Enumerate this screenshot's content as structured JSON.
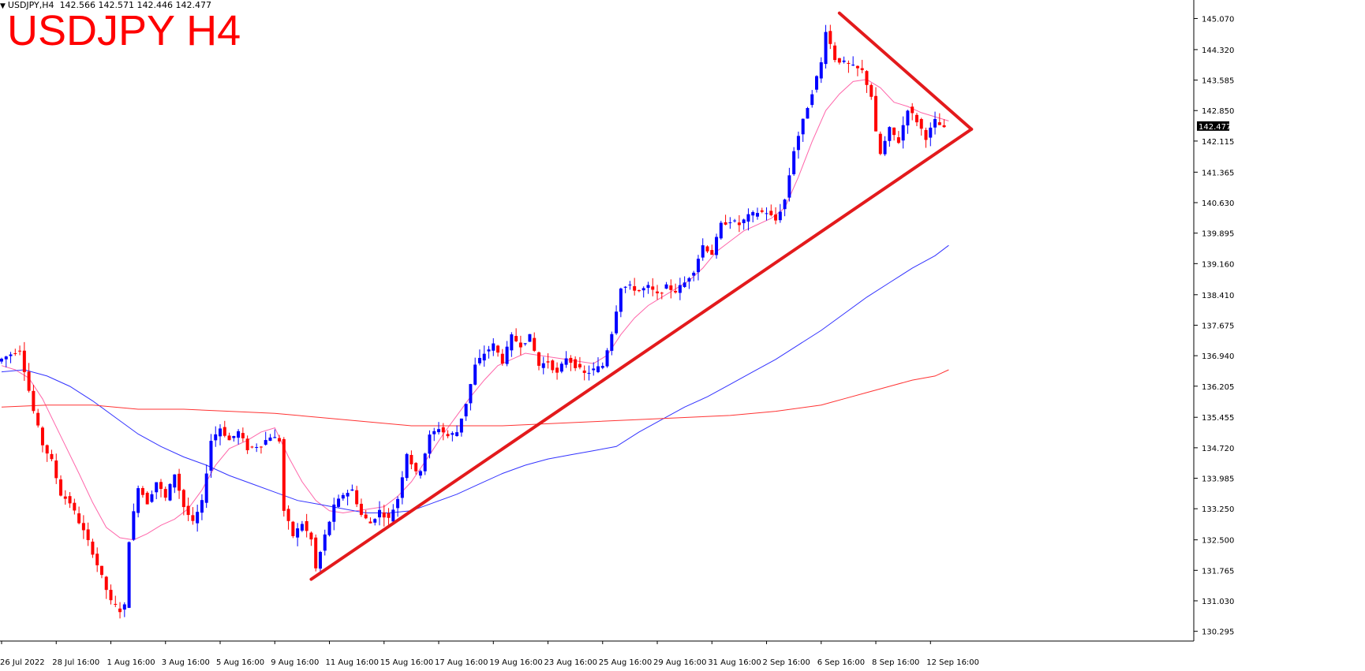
{
  "header": {
    "symbol_line": "USDJPY,H4",
    "ohlc": "142.566 142.571 142.446 142.477",
    "title": "USDJPY H4"
  },
  "colors": {
    "bull": "#0000ff",
    "bear": "#ff0000",
    "trendline": "#e31a1c",
    "ma_fast": "#ff66aa",
    "ma_mid": "#3333ff",
    "ma_slow": "#ff3333",
    "axis": "#000000",
    "price_tag_bg": "#000000"
  },
  "chart_data": {
    "type": "candlestick",
    "symbol": "USDJPY",
    "timeframe": "H4",
    "current_price": "142.477",
    "y_ticks": [
      "145.070",
      "144.320",
      "143.585",
      "142.850",
      "142.115",
      "141.365",
      "140.630",
      "139.895",
      "139.160",
      "138.410",
      "137.675",
      "136.940",
      "136.205",
      "135.455",
      "134.720",
      "133.985",
      "133.250",
      "132.500",
      "131.765",
      "131.030",
      "130.295"
    ],
    "ylim": [
      130.06,
      145.44
    ],
    "x_count": 225,
    "x_ticks": [
      {
        "i": 0,
        "label": "26 Jul 2022"
      },
      {
        "i": 12,
        "label": "28 Jul 16:00"
      },
      {
        "i": 24,
        "label": "1 Aug 16:00"
      },
      {
        "i": 36,
        "label": "3 Aug 16:00"
      },
      {
        "i": 48,
        "label": "5 Aug 16:00"
      },
      {
        "i": 60,
        "label": "9 Aug 16:00"
      },
      {
        "i": 72,
        "label": "11 Aug 16:00"
      },
      {
        "i": 84,
        "label": "15 Aug 16:00"
      },
      {
        "i": 96,
        "label": "17 Aug 16:00"
      },
      {
        "i": 108,
        "label": "19 Aug 16:00"
      },
      {
        "i": 120,
        "label": "23 Aug 16:00"
      },
      {
        "i": 132,
        "label": "25 Aug 16:00"
      },
      {
        "i": 144,
        "label": "29 Aug 16:00"
      },
      {
        "i": 156,
        "label": "31 Aug 16:00"
      },
      {
        "i": 168,
        "label": "2 Sep 16:00"
      },
      {
        "i": 180,
        "label": "6 Sep 16:00"
      },
      {
        "i": 192,
        "label": "8 Sep 16:00"
      },
      {
        "i": 204,
        "label": "12 Sep 16:00"
      }
    ],
    "price_path": [
      [
        0,
        136.8
      ],
      [
        5,
        137.1
      ],
      [
        6,
        136.6
      ],
      [
        8,
        135.6
      ],
      [
        10,
        134.8
      ],
      [
        12,
        134.4
      ],
      [
        14,
        133.6
      ],
      [
        16,
        133.4
      ],
      [
        19,
        132.7
      ],
      [
        21,
        132.2
      ],
      [
        23,
        131.6
      ],
      [
        25,
        131.0
      ],
      [
        27,
        130.8
      ],
      [
        28,
        130.9
      ],
      [
        29,
        132.5
      ],
      [
        31,
        133.8
      ],
      [
        33,
        133.4
      ],
      [
        35,
        133.9
      ],
      [
        37,
        133.5
      ],
      [
        39,
        134.1
      ],
      [
        41,
        133.3
      ],
      [
        43,
        132.9
      ],
      [
        45,
        133.4
      ],
      [
        47,
        134.9
      ],
      [
        49,
        135.2
      ],
      [
        51,
        134.9
      ],
      [
        53,
        135.1
      ],
      [
        55,
        134.7
      ],
      [
        58,
        134.8
      ],
      [
        60,
        135.0
      ],
      [
        62,
        134.9
      ],
      [
        63,
        133.2
      ],
      [
        65,
        132.6
      ],
      [
        67,
        132.9
      ],
      [
        69,
        132.5
      ],
      [
        70,
        131.8
      ],
      [
        72,
        132.6
      ],
      [
        74,
        133.3
      ],
      [
        76,
        133.6
      ],
      [
        78,
        133.7
      ],
      [
        80,
        133.1
      ],
      [
        82,
        132.9
      ],
      [
        84,
        133.2
      ],
      [
        86,
        133.0
      ],
      [
        88,
        133.5
      ],
      [
        90,
        134.6
      ],
      [
        92,
        134.1
      ],
      [
        93,
        134.2
      ],
      [
        95,
        135.0
      ],
      [
        97,
        135.2
      ],
      [
        99,
        135.0
      ],
      [
        101,
        135.1
      ],
      [
        103,
        135.8
      ],
      [
        105,
        136.7
      ],
      [
        107,
        137.0
      ],
      [
        109,
        137.2
      ],
      [
        111,
        136.8
      ],
      [
        113,
        137.4
      ],
      [
        115,
        137.2
      ],
      [
        117,
        137.4
      ],
      [
        119,
        136.7
      ],
      [
        121,
        136.8
      ],
      [
        123,
        136.5
      ],
      [
        125,
        136.9
      ],
      [
        127,
        136.7
      ],
      [
        129,
        136.5
      ],
      [
        131,
        136.6
      ],
      [
        133,
        136.7
      ],
      [
        135,
        137.5
      ],
      [
        137,
        138.6
      ],
      [
        139,
        138.6
      ],
      [
        141,
        138.5
      ],
      [
        143,
        138.6
      ],
      [
        145,
        138.4
      ],
      [
        147,
        138.6
      ],
      [
        149,
        138.5
      ],
      [
        151,
        138.7
      ],
      [
        153,
        139.0
      ],
      [
        155,
        139.6
      ],
      [
        157,
        139.4
      ],
      [
        159,
        140.1
      ],
      [
        161,
        140.2
      ],
      [
        163,
        140.1
      ],
      [
        165,
        140.3
      ],
      [
        167,
        140.4
      ],
      [
        169,
        140.4
      ],
      [
        171,
        140.2
      ],
      [
        173,
        140.7
      ],
      [
        175,
        141.9
      ],
      [
        177,
        142.6
      ],
      [
        179,
        143.3
      ],
      [
        181,
        144.0
      ],
      [
        182,
        144.8
      ],
      [
        184,
        144.1
      ],
      [
        186,
        144.0
      ],
      [
        188,
        143.9
      ],
      [
        190,
        143.8
      ],
      [
        192,
        143.2
      ],
      [
        193,
        142.3
      ],
      [
        194,
        141.8
      ],
      [
        196,
        142.4
      ],
      [
        198,
        142.1
      ],
      [
        200,
        142.9
      ],
      [
        202,
        142.6
      ],
      [
        204,
        142.2
      ],
      [
        206,
        142.6
      ],
      [
        208,
        142.4
      ]
    ],
    "series": [
      {
        "name": "",
        "color": "#ff66aa",
        "points": [
          [
            0,
            136.7
          ],
          [
            3,
            136.6
          ],
          [
            6,
            136.4
          ],
          [
            9,
            135.9
          ],
          [
            13,
            135.0
          ],
          [
            17,
            134.1
          ],
          [
            20,
            133.4
          ],
          [
            23,
            132.8
          ],
          [
            26,
            132.55
          ],
          [
            29,
            132.5
          ],
          [
            32,
            132.65
          ],
          [
            35,
            132.85
          ],
          [
            38,
            133.0
          ],
          [
            41,
            133.25
          ],
          [
            44,
            133.7
          ],
          [
            47,
            134.3
          ],
          [
            50,
            134.7
          ],
          [
            54,
            134.9
          ],
          [
            57,
            135.1
          ],
          [
            60,
            135.2
          ],
          [
            63,
            134.5
          ],
          [
            66,
            133.9
          ],
          [
            69,
            133.45
          ],
          [
            72,
            133.2
          ],
          [
            75,
            133.15
          ],
          [
            78,
            133.2
          ],
          [
            81,
            133.25
          ],
          [
            84,
            133.3
          ],
          [
            87,
            133.55
          ],
          [
            90,
            133.9
          ],
          [
            94,
            134.55
          ],
          [
            97,
            135.05
          ],
          [
            100,
            135.5
          ],
          [
            103,
            135.95
          ],
          [
            106,
            136.35
          ],
          [
            109,
            136.7
          ],
          [
            112,
            136.85
          ],
          [
            115,
            137.0
          ],
          [
            118,
            136.95
          ],
          [
            121,
            136.9
          ],
          [
            124,
            136.85
          ],
          [
            127,
            136.8
          ],
          [
            130,
            136.75
          ],
          [
            133,
            136.95
          ],
          [
            136,
            137.45
          ],
          [
            139,
            137.85
          ],
          [
            142,
            138.15
          ],
          [
            145,
            138.35
          ],
          [
            148,
            138.55
          ],
          [
            151,
            138.75
          ],
          [
            154,
            139.05
          ],
          [
            157,
            139.45
          ],
          [
            160,
            139.7
          ],
          [
            163,
            139.95
          ],
          [
            166,
            140.1
          ],
          [
            169,
            140.25
          ],
          [
            172,
            140.5
          ],
          [
            175,
            141.25
          ],
          [
            178,
            142.1
          ],
          [
            181,
            142.85
          ],
          [
            184,
            143.25
          ],
          [
            187,
            143.55
          ],
          [
            190,
            143.6
          ],
          [
            193,
            143.4
          ],
          [
            196,
            143.05
          ],
          [
            199,
            142.95
          ],
          [
            202,
            142.8
          ],
          [
            205,
            142.7
          ],
          [
            208,
            142.6
          ]
        ]
      },
      {
        "name": "",
        "color": "#3333ff",
        "points": [
          [
            0,
            136.55
          ],
          [
            5,
            136.6
          ],
          [
            10,
            136.45
          ],
          [
            15,
            136.2
          ],
          [
            20,
            135.85
          ],
          [
            25,
            135.45
          ],
          [
            30,
            135.05
          ],
          [
            35,
            134.75
          ],
          [
            40,
            134.5
          ],
          [
            45,
            134.3
          ],
          [
            50,
            134.05
          ],
          [
            55,
            133.85
          ],
          [
            60,
            133.65
          ],
          [
            65,
            133.45
          ],
          [
            70,
            133.35
          ],
          [
            75,
            133.25
          ],
          [
            80,
            133.15
          ],
          [
            85,
            133.15
          ],
          [
            90,
            133.2
          ],
          [
            95,
            133.4
          ],
          [
            100,
            133.6
          ],
          [
            105,
            133.85
          ],
          [
            110,
            134.1
          ],
          [
            115,
            134.3
          ],
          [
            120,
            134.45
          ],
          [
            125,
            134.55
          ],
          [
            130,
            134.65
          ],
          [
            135,
            134.75
          ],
          [
            140,
            135.1
          ],
          [
            145,
            135.4
          ],
          [
            150,
            135.7
          ],
          [
            155,
            135.95
          ],
          [
            160,
            136.25
          ],
          [
            165,
            136.55
          ],
          [
            170,
            136.85
          ],
          [
            175,
            137.2
          ],
          [
            180,
            137.55
          ],
          [
            185,
            137.95
          ],
          [
            190,
            138.35
          ],
          [
            195,
            138.7
          ],
          [
            200,
            139.05
          ],
          [
            205,
            139.35
          ],
          [
            208,
            139.6
          ]
        ]
      },
      {
        "name": "",
        "color": "#ff3333",
        "points": [
          [
            0,
            135.7
          ],
          [
            10,
            135.75
          ],
          [
            20,
            135.75
          ],
          [
            30,
            135.65
          ],
          [
            40,
            135.65
          ],
          [
            50,
            135.6
          ],
          [
            60,
            135.55
          ],
          [
            70,
            135.45
          ],
          [
            80,
            135.35
          ],
          [
            90,
            135.25
          ],
          [
            100,
            135.25
          ],
          [
            110,
            135.25
          ],
          [
            120,
            135.3
          ],
          [
            130,
            135.35
          ],
          [
            140,
            135.4
          ],
          [
            150,
            135.45
          ],
          [
            160,
            135.5
          ],
          [
            170,
            135.6
          ],
          [
            180,
            135.75
          ],
          [
            185,
            135.9
          ],
          [
            190,
            136.05
          ],
          [
            195,
            136.2
          ],
          [
            200,
            136.35
          ],
          [
            205,
            136.45
          ],
          [
            208,
            136.6
          ]
        ]
      }
    ],
    "trendlines": [
      {
        "from": [
          68,
          131.55
        ],
        "to": [
          213,
          142.4
        ]
      },
      {
        "from": [
          184,
          145.2
        ],
        "to": [
          213,
          142.4
        ]
      }
    ]
  }
}
